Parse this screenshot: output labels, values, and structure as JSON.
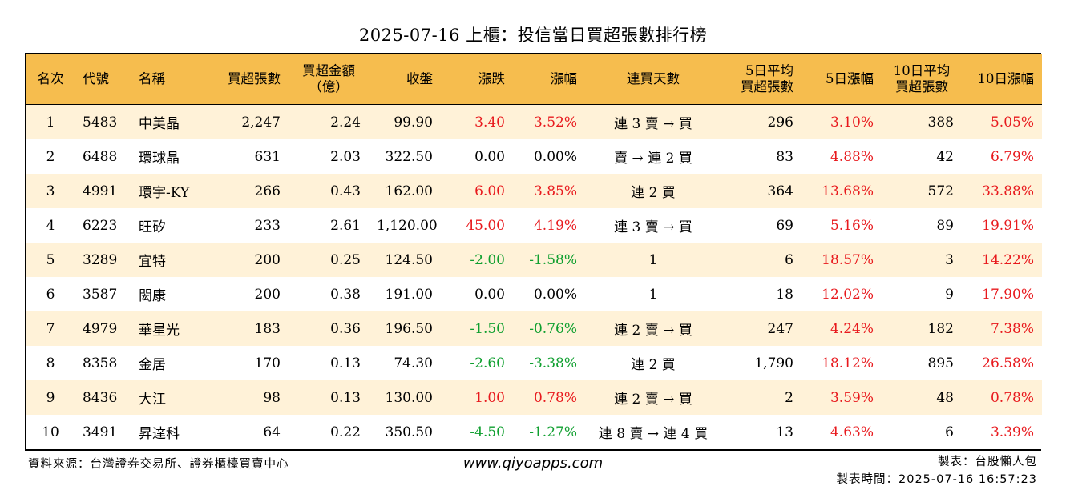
{
  "title": "2025-07-16 上櫃：投信當日買超張數排行榜",
  "columns": [
    {
      "l1": "名次",
      "l2": ""
    },
    {
      "l1": "代號",
      "l2": ""
    },
    {
      "l1": "名稱",
      "l2": ""
    },
    {
      "l1": "買超張數",
      "l2": ""
    },
    {
      "l1": "買超金額",
      "l2": "（億）"
    },
    {
      "l1": "收盤",
      "l2": ""
    },
    {
      "l1": "漲跌",
      "l2": ""
    },
    {
      "l1": "漲幅",
      "l2": ""
    },
    {
      "l1": "連買天數",
      "l2": ""
    },
    {
      "l1": "5日平均",
      "l2": "買超張數"
    },
    {
      "l1": "5日漲幅",
      "l2": ""
    },
    {
      "l1": "10日平均",
      "l2": "買超張數"
    },
    {
      "l1": "10日漲幅",
      "l2": ""
    }
  ],
  "rows": [
    {
      "rank": "1",
      "code": "5483",
      "name": "中美晶",
      "net_buy": "2,247",
      "amount": "2.24",
      "close": "99.90",
      "change": "3.40",
      "change_color": "red",
      "pct": "3.52%",
      "pct_color": "red",
      "streak": "連 3 賣 → 買",
      "avg5": "296",
      "chg5": "3.10%",
      "chg5_color": "red",
      "avg10": "388",
      "chg10": "5.05%",
      "chg10_color": "red"
    },
    {
      "rank": "2",
      "code": "6488",
      "name": "環球晶",
      "net_buy": "631",
      "amount": "2.03",
      "close": "322.50",
      "change": "0.00",
      "change_color": "black",
      "pct": "0.00%",
      "pct_color": "black",
      "streak": "賣 → 連 2 買",
      "avg5": "83",
      "chg5": "4.88%",
      "chg5_color": "red",
      "avg10": "42",
      "chg10": "6.79%",
      "chg10_color": "red"
    },
    {
      "rank": "3",
      "code": "4991",
      "name": "環宇-KY",
      "net_buy": "266",
      "amount": "0.43",
      "close": "162.00",
      "change": "6.00",
      "change_color": "red",
      "pct": "3.85%",
      "pct_color": "red",
      "streak": "連 2 買",
      "avg5": "364",
      "chg5": "13.68%",
      "chg5_color": "red",
      "avg10": "572",
      "chg10": "33.88%",
      "chg10_color": "red"
    },
    {
      "rank": "4",
      "code": "6223",
      "name": "旺矽",
      "net_buy": "233",
      "amount": "2.61",
      "close": "1,120.00",
      "change": "45.00",
      "change_color": "red",
      "pct": "4.19%",
      "pct_color": "red",
      "streak": "連 3 賣 → 買",
      "avg5": "69",
      "chg5": "5.16%",
      "chg5_color": "red",
      "avg10": "89",
      "chg10": "19.91%",
      "chg10_color": "red"
    },
    {
      "rank": "5",
      "code": "3289",
      "name": "宜特",
      "net_buy": "200",
      "amount": "0.25",
      "close": "124.50",
      "change": "-2.00",
      "change_color": "green",
      "pct": "-1.58%",
      "pct_color": "green",
      "streak": "1",
      "avg5": "6",
      "chg5": "18.57%",
      "chg5_color": "red",
      "avg10": "3",
      "chg10": "14.22%",
      "chg10_color": "red"
    },
    {
      "rank": "6",
      "code": "3587",
      "name": "閎康",
      "net_buy": "200",
      "amount": "0.38",
      "close": "191.00",
      "change": "0.00",
      "change_color": "black",
      "pct": "0.00%",
      "pct_color": "black",
      "streak": "1",
      "avg5": "18",
      "chg5": "12.02%",
      "chg5_color": "red",
      "avg10": "9",
      "chg10": "17.90%",
      "chg10_color": "red"
    },
    {
      "rank": "7",
      "code": "4979",
      "name": "華星光",
      "net_buy": "183",
      "amount": "0.36",
      "close": "196.50",
      "change": "-1.50",
      "change_color": "green",
      "pct": "-0.76%",
      "pct_color": "green",
      "streak": "連 2 賣 → 買",
      "avg5": "247",
      "chg5": "4.24%",
      "chg5_color": "red",
      "avg10": "182",
      "chg10": "7.38%",
      "chg10_color": "red"
    },
    {
      "rank": "8",
      "code": "8358",
      "name": "金居",
      "net_buy": "170",
      "amount": "0.13",
      "close": "74.30",
      "change": "-2.60",
      "change_color": "green",
      "pct": "-3.38%",
      "pct_color": "green",
      "streak": "連 2 買",
      "avg5": "1,790",
      "chg5": "18.12%",
      "chg5_color": "red",
      "avg10": "895",
      "chg10": "26.58%",
      "chg10_color": "red"
    },
    {
      "rank": "9",
      "code": "8436",
      "name": "大江",
      "net_buy": "98",
      "amount": "0.13",
      "close": "130.00",
      "change": "1.00",
      "change_color": "red",
      "pct": "0.78%",
      "pct_color": "red",
      "streak": "連 2 賣 → 買",
      "avg5": "2",
      "chg5": "3.59%",
      "chg5_color": "red",
      "avg10": "48",
      "chg10": "0.78%",
      "chg10_color": "red"
    },
    {
      "rank": "10",
      "code": "3491",
      "name": "昇達科",
      "net_buy": "64",
      "amount": "0.22",
      "close": "350.50",
      "change": "-4.50",
      "change_color": "green",
      "pct": "-1.27%",
      "pct_color": "green",
      "streak": "連 8 賣 → 連 4 買",
      "avg5": "13",
      "chg5": "4.63%",
      "chg5_color": "red",
      "avg10": "6",
      "chg10": "3.39%",
      "chg10_color": "red"
    }
  ],
  "footer": {
    "source": "資料來源：台灣證券交易所、證券櫃檯買賣中心",
    "website": "www.qiyoapps.com",
    "author": "製表：台股懶人包",
    "generated": "製表時間：2025-07-16 16:57:23"
  },
  "colors": {
    "header_bg": "#f6bd4e",
    "row_alt_bg": "#fff2d8",
    "up": "#e8191d",
    "down": "#0f9f2f"
  }
}
